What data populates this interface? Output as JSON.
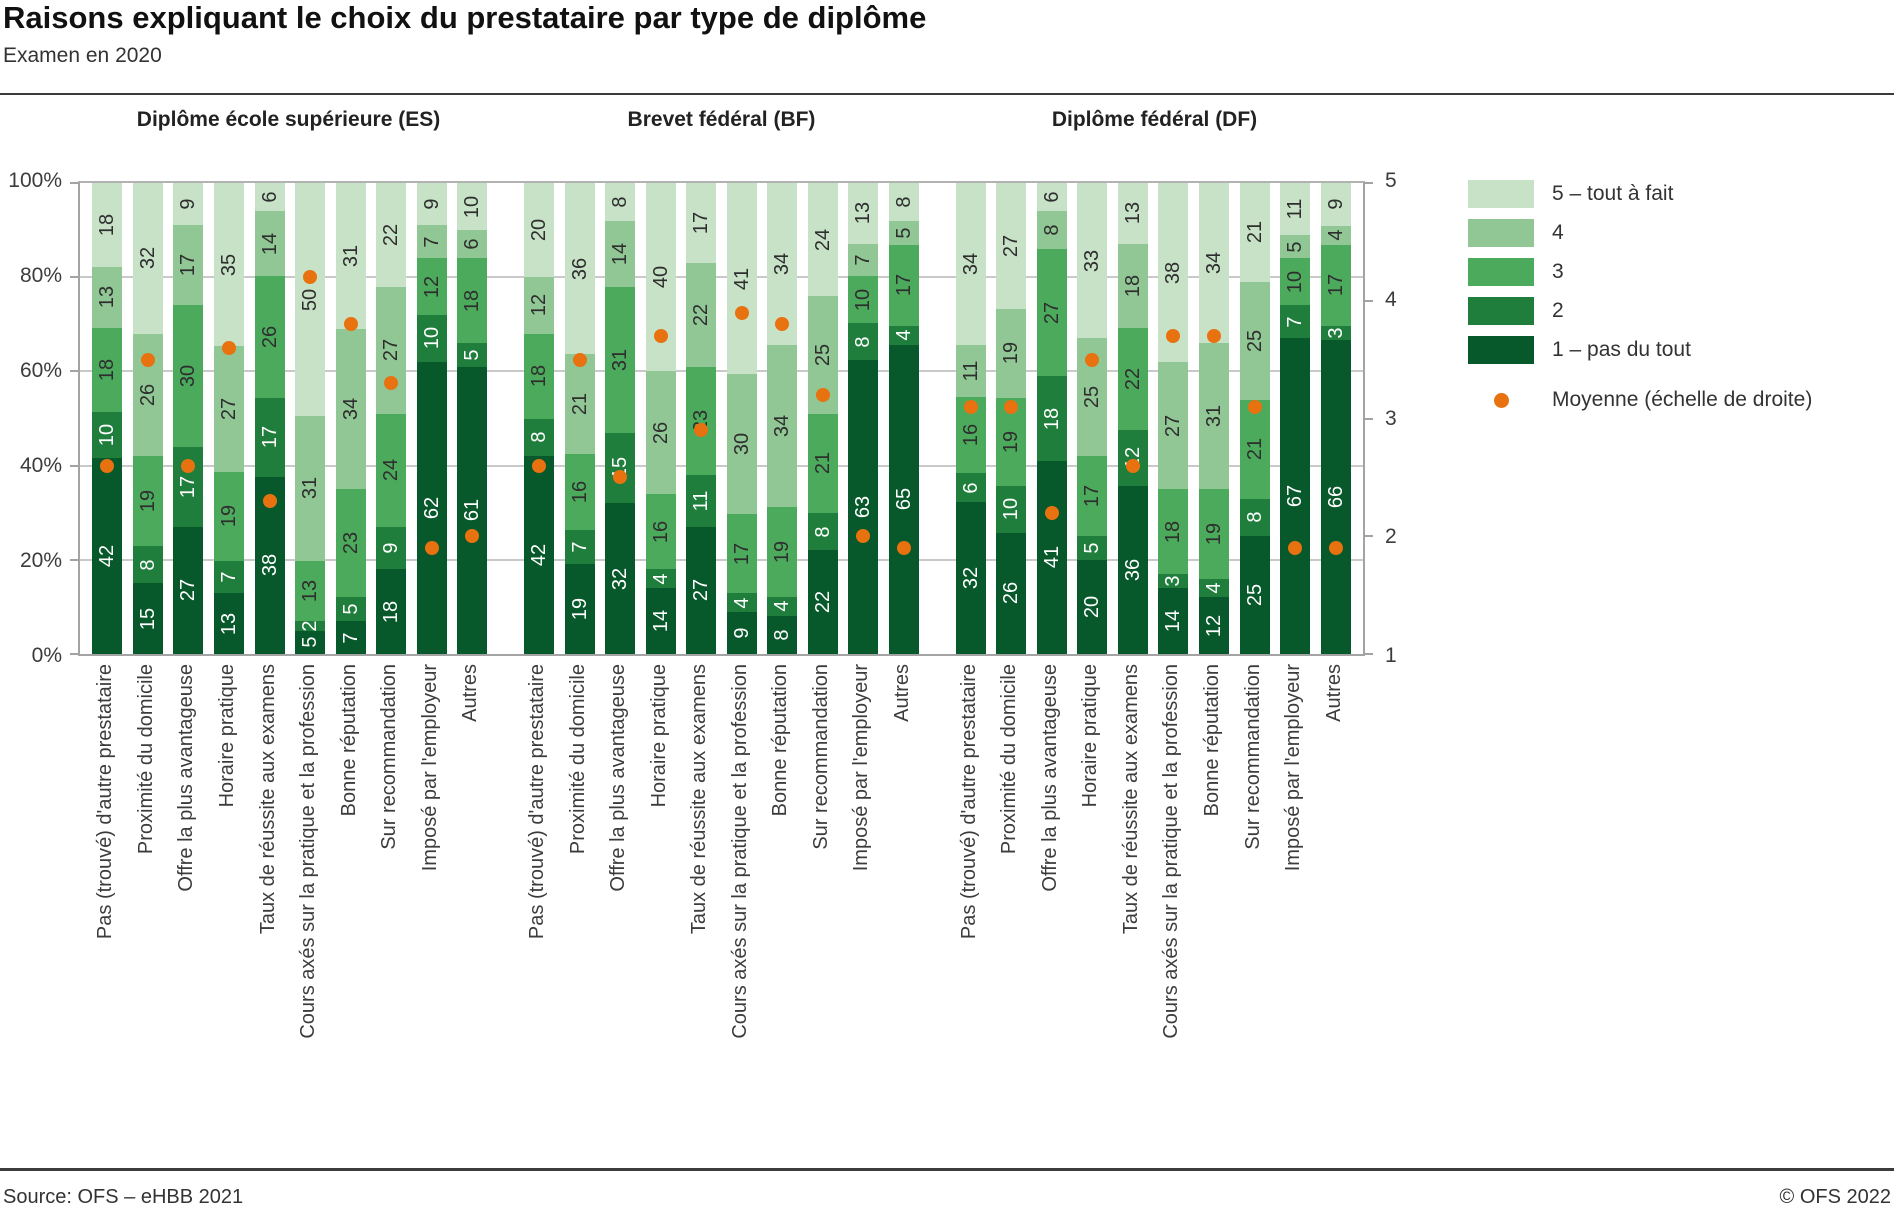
{
  "header": {
    "title": "Raisons expliquant le choix du prestataire par type de diplôme",
    "subtitle": "Examen en 2020"
  },
  "footer": {
    "source": "Source: OFS – eHBB 2021",
    "copyright": "© OFS 2022"
  },
  "colors": {
    "segment_colors": [
      "#07582a",
      "#1f7e3c",
      "#4caa5c",
      "#90c795",
      "#c7e2c7"
    ],
    "segment_label_colors": [
      "#ffffff",
      "#ffffff",
      "#2e2e2e",
      "#2e2e2e",
      "#2e2e2e"
    ],
    "mean_dot": "#e8720f",
    "gridline": "#c9c9c9",
    "axis": "#a3a3a3"
  },
  "axes": {
    "left": [
      {
        "label": "0%",
        "pct": 0
      },
      {
        "label": "20%",
        "pct": 20
      },
      {
        "label": "40%",
        "pct": 40
      },
      {
        "label": "60%",
        "pct": 60
      },
      {
        "label": "80%",
        "pct": 80
      },
      {
        "label": "100%",
        "pct": 100
      }
    ],
    "gridlines_pct": [
      20,
      40,
      60,
      80
    ],
    "right": [
      {
        "label": "1",
        "value": 1
      },
      {
        "label": "2",
        "value": 2
      },
      {
        "label": "3",
        "value": 3
      },
      {
        "label": "4",
        "value": 4
      },
      {
        "label": "5",
        "value": 5
      }
    ]
  },
  "legend": {
    "items": [
      {
        "label": "5 – tout à fait",
        "color": "#c7e2c7"
      },
      {
        "label": "4",
        "color": "#90c795"
      },
      {
        "label": "3",
        "color": "#4caa5c"
      },
      {
        "label": "2",
        "color": "#1f7e3c"
      },
      {
        "label": "1 – pas du tout",
        "color": "#07582a"
      }
    ],
    "mean_label": "Moyenne  (échelle de droite)",
    "mean_color": "#e8720f"
  },
  "chart_data": {
    "type": "bar",
    "stacked": true,
    "title": "Raisons expliquant le choix du prestataire par type de diplôme",
    "subtitle": "Examen en 2020",
    "series_labels_bottom_to_top": [
      "1 – pas du tout",
      "2",
      "3",
      "4",
      "5 – tout à fait"
    ],
    "left_axis": {
      "min": 0,
      "max": 100,
      "unit": "%"
    },
    "right_axis": {
      "min": 1,
      "max": 5,
      "label": "Moyenne (échelle de droite)"
    },
    "categories": [
      "Pas (trouvé) d'autre prestataire",
      "Proximité du domicile",
      "Offre la plus avantageuse",
      "Horaire pratique",
      "Taux de réussite aux examens",
      "Cours axés sur la pratique et la profession",
      "Bonne réputation",
      "Sur recommandation",
      "Imposé par l'employeur",
      "Autres"
    ],
    "panels": [
      {
        "title": "Diplôme école supérieure (ES)",
        "bars": [
          {
            "values": [
              42,
              10,
              18,
              13,
              18
            ],
            "mean": 2.6
          },
          {
            "values": [
              15,
              8,
              19,
              26,
              32
            ],
            "mean": 3.5
          },
          {
            "values": [
              27,
              17,
              30,
              17,
              9
            ],
            "mean": 2.6
          },
          {
            "values": [
              13,
              7,
              19,
              27,
              35
            ],
            "mean": 3.6
          },
          {
            "values": [
              38,
              17,
              26,
              14,
              6
            ],
            "mean": 2.3
          },
          {
            "values": [
              5,
              2,
              13,
              31,
              50
            ],
            "mean": 4.2
          },
          {
            "values": [
              7,
              5,
              23,
              34,
              31
            ],
            "mean": 3.8
          },
          {
            "values": [
              18,
              9,
              24,
              27,
              22
            ],
            "mean": 3.3
          },
          {
            "values": [
              62,
              10,
              12,
              7,
              9
            ],
            "mean": 1.9
          },
          {
            "values": [
              61,
              5,
              18,
              6,
              10
            ],
            "mean": 2.0
          }
        ]
      },
      {
        "title": "Brevet fédéral (BF)",
        "bars": [
          {
            "values": [
              42,
              8,
              18,
              12,
              20
            ],
            "mean": 2.6
          },
          {
            "values": [
              19,
              7,
              16,
              21,
              36
            ],
            "mean": 3.5
          },
          {
            "values": [
              32,
              15,
              31,
              14,
              8
            ],
            "mean": 2.5
          },
          {
            "values": [
              14,
              4,
              16,
              26,
              40
            ],
            "mean": 3.7
          },
          {
            "values": [
              27,
              11,
              23,
              22,
              17
            ],
            "mean": 2.9
          },
          {
            "values": [
              9,
              4,
              17,
              30,
              41
            ],
            "mean": 3.9
          },
          {
            "values": [
              8,
              4,
              19,
              34,
              34
            ],
            "mean": 3.8
          },
          {
            "values": [
              22,
              8,
              21,
              25,
              24
            ],
            "mean": 3.2
          },
          {
            "values": [
              63,
              8,
              10,
              7,
              13
            ],
            "mean": 2.0
          },
          {
            "values": [
              65,
              4,
              17,
              5,
              8
            ],
            "mean": 1.9
          }
        ]
      },
      {
        "title": "Diplôme fédéral (DF)",
        "bars": [
          {
            "values": [
              32,
              6,
              16,
              11,
              34
            ],
            "mean": 3.1
          },
          {
            "values": [
              26,
              10,
              19,
              19,
              27
            ],
            "mean": 3.1
          },
          {
            "values": [
              41,
              18,
              27,
              8,
              6
            ],
            "mean": 2.2
          },
          {
            "values": [
              20,
              5,
              17,
              25,
              33
            ],
            "mean": 3.5
          },
          {
            "values": [
              36,
              12,
              22,
              18,
              13
            ],
            "mean": 2.6
          },
          {
            "values": [
              14,
              3,
              18,
              27,
              38
            ],
            "mean": 3.7
          },
          {
            "values": [
              12,
              4,
              19,
              31,
              34
            ],
            "mean": 3.7
          },
          {
            "values": [
              25,
              8,
              21,
              25,
              21
            ],
            "mean": 3.1
          },
          {
            "values": [
              67,
              7,
              10,
              5,
              11
            ],
            "mean": 1.9
          },
          {
            "values": [
              66,
              3,
              17,
              4,
              9
            ],
            "mean": 1.9
          }
        ]
      }
    ]
  }
}
